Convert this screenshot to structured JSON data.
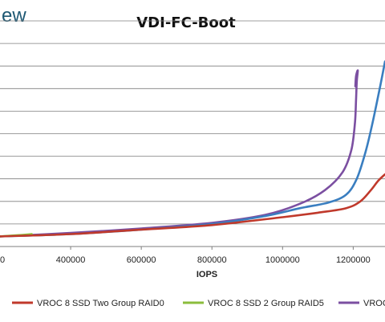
{
  "brand": {
    "fragment": "ew"
  },
  "chart_data": {
    "type": "line",
    "title": "VDI-FC-Boot",
    "xlabel": "IOPS",
    "ylabel": "",
    "x_tick_labels": [
      "400000",
      "600000",
      "800000",
      "1000000",
      "1200000"
    ],
    "xlim": [
      200000,
      1290000
    ],
    "ylim": [
      0,
      10
    ],
    "y_gridlines": [
      1,
      2,
      3,
      4,
      5,
      6,
      7,
      8,
      9,
      10
    ],
    "grid": true,
    "legend_position": "bottom",
    "series": [
      {
        "name": "VROC 8 SSD Two Group RAID0",
        "color": "#c0392b",
        "x": [
          200000,
          400000,
          600000,
          800000,
          1000000,
          1100000,
          1180000,
          1220000,
          1250000,
          1270000,
          1290000
        ],
        "y": [
          0.45,
          0.55,
          0.75,
          0.95,
          1.3,
          1.5,
          1.7,
          2.0,
          2.5,
          2.9,
          3.2
        ]
      },
      {
        "name": "VROC 8 SSD 2 Group RAID5",
        "color": "#8bbd3c",
        "x": [
          200000,
          250000,
          290000
        ],
        "y": [
          0.45,
          0.5,
          0.55
        ]
      },
      {
        "name": "VROC",
        "color": "#7b4fa1",
        "x": [
          200000,
          400000,
          600000,
          800000,
          950000,
          1050000,
          1120000,
          1170000,
          1195000,
          1205000,
          1208000,
          1210000,
          1213000,
          1208000,
          1206000
        ],
        "y": [
          0.45,
          0.6,
          0.8,
          1.05,
          1.4,
          1.9,
          2.5,
          3.3,
          4.3,
          5.5,
          6.5,
          7.3,
          7.8,
          7.55,
          7.1
        ]
      },
      {
        "name": "",
        "color": "#3a7ec0",
        "x": [
          200000,
          400000,
          600000,
          800000,
          950000,
          1050000,
          1130000,
          1180000,
          1210000,
          1235000,
          1255000,
          1275000,
          1290000
        ],
        "y": [
          0.45,
          0.55,
          0.75,
          1.0,
          1.35,
          1.7,
          1.95,
          2.3,
          3.0,
          4.2,
          5.5,
          7.0,
          8.2
        ]
      }
    ]
  }
}
